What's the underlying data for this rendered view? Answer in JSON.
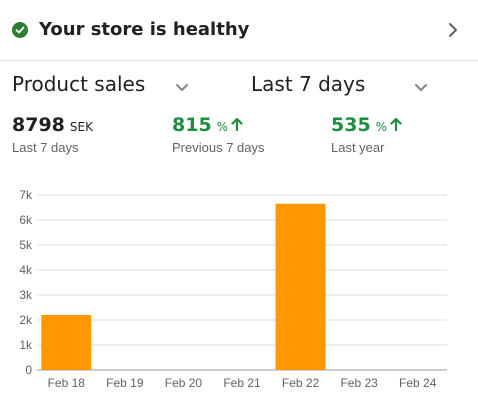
{
  "health": {
    "title": "Your store is healthy",
    "status_color": "#2e7d32",
    "status_icon": "check-circle-icon",
    "chevron_icon": "chevron-right-icon"
  },
  "selectors": {
    "metric": "Product sales",
    "range": "Last 7 days"
  },
  "stats": [
    {
      "value": "8798",
      "unit": "SEK",
      "label": "Last 7 days",
      "color": "#202124"
    },
    {
      "value": "815",
      "unit": "%",
      "label": "Previous 7 days",
      "color": "#1e8e3e",
      "trend_icon": "arrow-up-icon"
    },
    {
      "value": "535",
      "unit": "%",
      "label": "Last year",
      "color": "#1e8e3e",
      "trend_icon": "arrow-up-icon"
    }
  ],
  "chart_data": {
    "type": "bar",
    "categories": [
      "Feb 18",
      "Feb 19",
      "Feb 20",
      "Feb 21",
      "Feb 22",
      "Feb 23",
      "Feb 24"
    ],
    "values": [
      2200,
      0,
      0,
      0,
      6650,
      0,
      0
    ],
    "yticks": [
      "0",
      "1k",
      "2k",
      "3k",
      "4k",
      "5k",
      "6k",
      "7k"
    ],
    "ylim": [
      0,
      7000
    ],
    "grid": true,
    "bar_color": "#ff9800"
  }
}
